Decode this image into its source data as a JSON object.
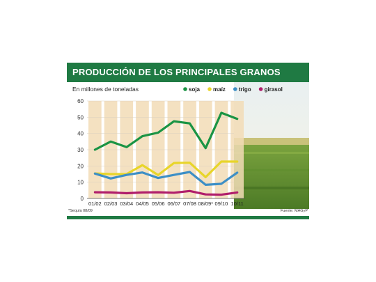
{
  "title": "PRODUCCIÓN DE LOS PRINCIPALES GRANOS",
  "footnote": "*Sequía 08/09",
  "source": "Fuente: MAGyP",
  "chart_data": {
    "type": "line",
    "subtitle": "En millones de toneladas",
    "categories": [
      "01/02",
      "02/03",
      "03/04",
      "04/05",
      "05/06",
      "06/07",
      "07/08",
      "08/09*",
      "09/10",
      "10/11"
    ],
    "ylim": [
      0,
      60
    ],
    "yticks": [
      0,
      10,
      20,
      30,
      40,
      50,
      60
    ],
    "legend_position": "top-right",
    "series": [
      {
        "name": "soja",
        "color": "#1a9444",
        "values": [
          30.0,
          35.0,
          31.6,
          38.3,
          40.5,
          47.5,
          46.2,
          31.0,
          52.7,
          49.0
        ]
      },
      {
        "name": "maíz",
        "color": "#e8d52a",
        "values": [
          15.4,
          15.0,
          15.0,
          20.5,
          14.4,
          21.8,
          22.0,
          13.1,
          22.7,
          22.7
        ]
      },
      {
        "name": "trigo",
        "color": "#3d8fc6",
        "values": [
          15.3,
          12.3,
          14.5,
          16.0,
          12.6,
          14.5,
          16.3,
          8.4,
          9.0,
          15.9
        ]
      },
      {
        "name": "girasol",
        "color": "#b01e6b",
        "values": [
          3.8,
          3.7,
          3.2,
          3.7,
          3.8,
          3.5,
          4.6,
          2.5,
          2.3,
          3.7
        ]
      }
    ]
  }
}
